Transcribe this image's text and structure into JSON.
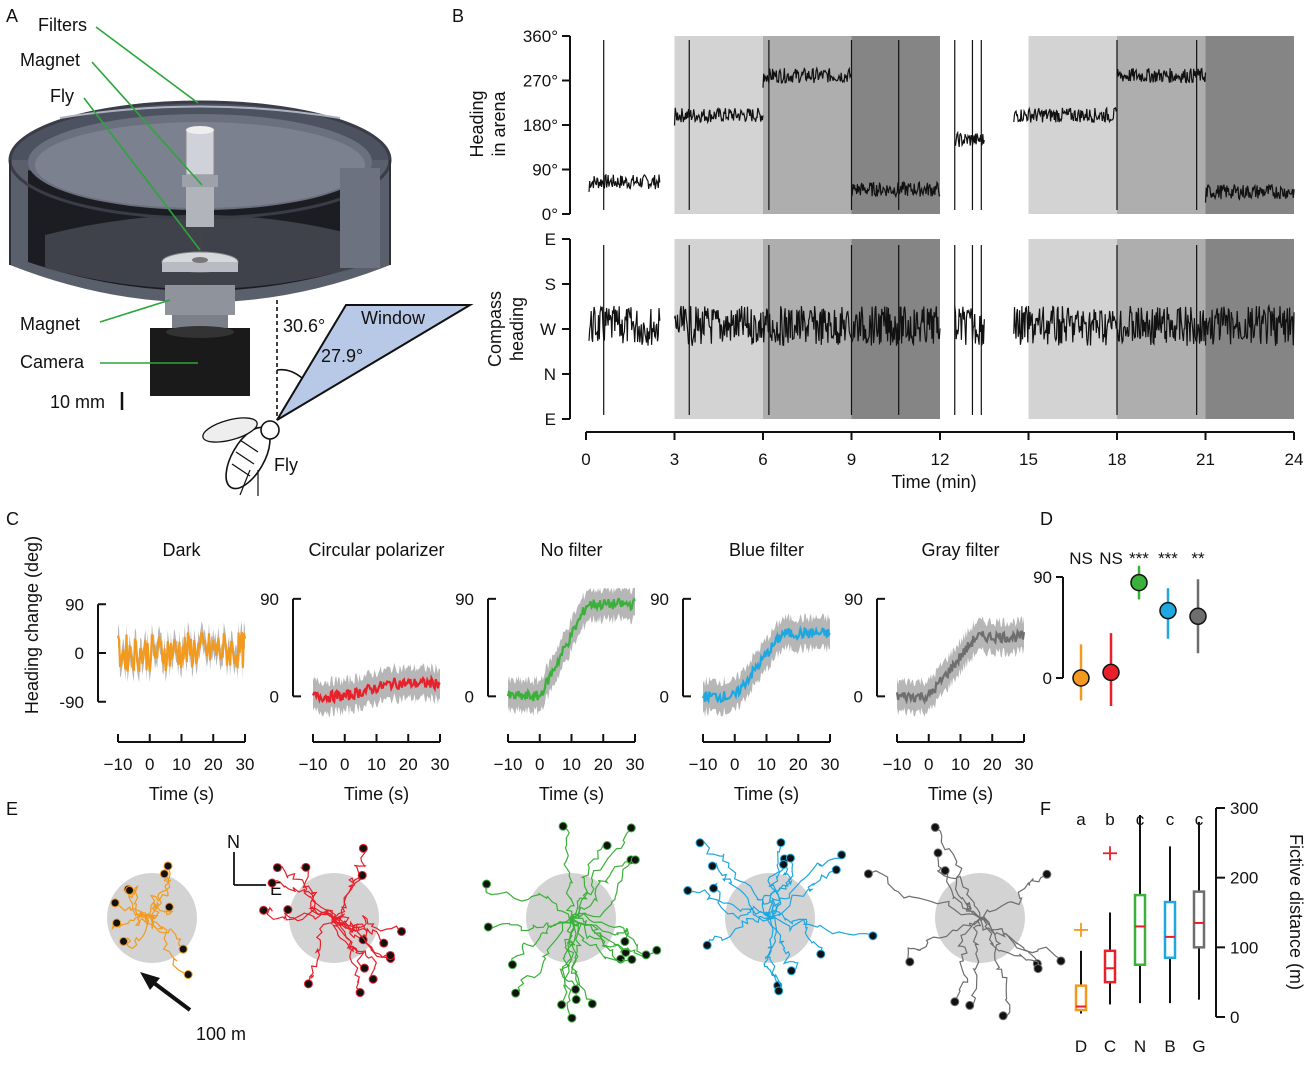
{
  "panels": {
    "A": "A",
    "B": "B",
    "C": "C",
    "D": "D",
    "E": "E",
    "F": "F"
  },
  "panelA": {
    "labels": {
      "filters": "Filters",
      "magnet_top": "Magnet",
      "fly_top": "Fly",
      "magnet_bottom": "Magnet",
      "camera": "Camera",
      "scale": "10 mm",
      "window": "Window",
      "angle1": "30.6°",
      "angle2": "27.9°",
      "fly_bottom": "Fly"
    },
    "colors": {
      "arena": "#5a5f6c",
      "window": "#b7c9e6"
    }
  },
  "panelB": {
    "top_ylabel_line1": "Heading",
    "top_ylabel_line2": "in arena",
    "top_yticks": [
      "360°",
      "270°",
      "180°",
      "90°",
      "0°"
    ],
    "bottom_ylabel_line1": "Compass",
    "bottom_ylabel_line2": "heading",
    "bottom_yticks": [
      "E",
      "S",
      "W",
      "N",
      "E"
    ],
    "xticks": [
      "0",
      "3",
      "6",
      "9",
      "12",
      "15",
      "18",
      "21",
      "24"
    ],
    "xlabel": "Time (min)",
    "xlim": [
      0,
      24
    ],
    "shaded_epochs": [
      {
        "start": 3,
        "end": 6,
        "shade": "#d3d3d3"
      },
      {
        "start": 6,
        "end": 9,
        "shade": "#aeaeae"
      },
      {
        "start": 9,
        "end": 12,
        "shade": "#858585"
      },
      {
        "start": 15,
        "end": 18,
        "shade": "#d3d3d3"
      },
      {
        "start": 18,
        "end": 21,
        "shade": "#aeaeae"
      },
      {
        "start": 21,
        "end": 24,
        "shade": "#858585"
      }
    ],
    "arena_heading": [
      {
        "start": 0.1,
        "end": 2.5,
        "mean": 65
      },
      {
        "start": 3.0,
        "end": 6.0,
        "mean": 200
      },
      {
        "start": 6.0,
        "end": 9.0,
        "mean": 280
      },
      {
        "start": 9.0,
        "end": 12.0,
        "mean": 50
      },
      {
        "start": 12.5,
        "end": 13.5,
        "mean": 150
      },
      {
        "start": 14.5,
        "end": 18.0,
        "mean": 200
      },
      {
        "start": 18.0,
        "end": 21.0,
        "mean": 280
      },
      {
        "start": 21.0,
        "end": 24.0,
        "mean": 45
      }
    ],
    "compass_heading_mean": "W"
  },
  "panelC": {
    "ylabel": "Heading change (deg)",
    "xlabel": "Time (s)",
    "xticks": [
      "−10",
      "0",
      "10",
      "20",
      "30"
    ],
    "subplots": [
      {
        "title": "Dark",
        "color": "#f29a1f",
        "yticks": [
          "90",
          "0",
          "-90"
        ],
        "ylim": [
          -120,
          120
        ],
        "pre": 0,
        "post": 5
      },
      {
        "title": "Circular polarizer",
        "color": "#e8202a",
        "yticks": [
          "90",
          "0"
        ],
        "ylim": [
          -20,
          100
        ],
        "pre": 0,
        "post": 12
      },
      {
        "title": "No filter",
        "color": "#3bb03a",
        "yticks": [
          "90",
          "0"
        ],
        "ylim": [
          -20,
          100
        ],
        "pre": 0,
        "post": 85
      },
      {
        "title": "Blue filter",
        "color": "#1fa7e0",
        "yticks": [
          "90",
          "0"
        ],
        "ylim": [
          -20,
          100
        ],
        "pre": 0,
        "post": 58
      },
      {
        "title": "Gray filter",
        "color": "#6e6e6e",
        "yticks": [
          "90",
          "0"
        ],
        "ylim": [
          -20,
          100
        ],
        "pre": 0,
        "post": 55
      }
    ]
  },
  "panelD": {
    "significance": [
      "NS",
      "NS",
      "***",
      "***",
      "**"
    ],
    "ytick_90": "90",
    "ytick_0": "0",
    "points": [
      {
        "condition": "Dark",
        "color": "#f29a1f",
        "mean": 0,
        "lo": -20,
        "hi": 30
      },
      {
        "condition": "Circular polarizer",
        "color": "#e8202a",
        "mean": 5,
        "lo": -25,
        "hi": 40
      },
      {
        "condition": "No filter",
        "color": "#3bb03a",
        "mean": 85,
        "lo": 70,
        "hi": 100
      },
      {
        "condition": "Blue filter",
        "color": "#1fa7e0",
        "mean": 60,
        "lo": 35,
        "hi": 80
      },
      {
        "condition": "Gray filter",
        "color": "#6e6e6e",
        "mean": 55,
        "lo": 22,
        "hi": 88
      }
    ]
  },
  "panelE": {
    "compass_n": "N",
    "compass_e": "E",
    "scale_label": "100 m",
    "colors": [
      "#f29a1f",
      "#e8202a",
      "#3bb03a",
      "#1fa7e0",
      "#6e6e6e"
    ]
  },
  "panelF": {
    "ylabel": "Fictive distance (m)",
    "yticks": [
      "300",
      "200",
      "100",
      "0"
    ],
    "ylim": [
      0,
      300
    ],
    "categories": [
      "D",
      "C",
      "N",
      "B",
      "G"
    ],
    "letters": [
      "a",
      "b",
      "c",
      "c",
      "c"
    ],
    "boxes": [
      {
        "cat": "D",
        "color": "#f29a1f",
        "min": 5,
        "q1": 10,
        "median": 15,
        "q3": 45,
        "max": 95,
        "outlier": 125
      },
      {
        "cat": "C",
        "color": "#e8202a",
        "min": 18,
        "q1": 50,
        "median": 70,
        "q3": 95,
        "max": 150,
        "outlier": 235
      },
      {
        "cat": "N",
        "color": "#3bb03a",
        "min": 20,
        "q1": 75,
        "median": 130,
        "q3": 175,
        "max": 290
      },
      {
        "cat": "B",
        "color": "#1fa7e0",
        "min": 20,
        "q1": 85,
        "median": 115,
        "q3": 165,
        "max": 245
      },
      {
        "cat": "G",
        "color": "#6e6e6e",
        "min": 25,
        "q1": 100,
        "median": 135,
        "q3": 180,
        "max": 280
      }
    ]
  }
}
